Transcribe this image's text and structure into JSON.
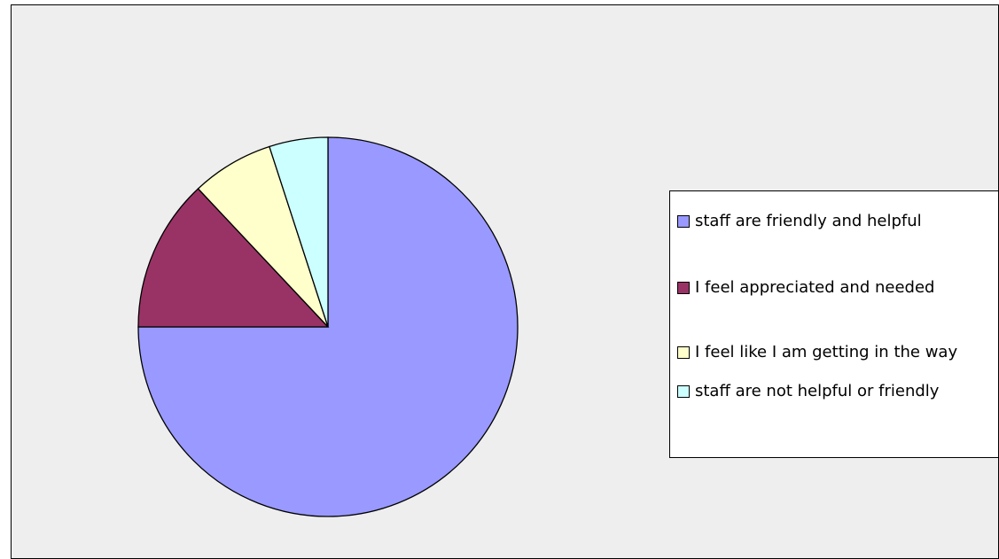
{
  "chart_data": {
    "type": "pie",
    "categories": [
      "staff are friendly and helpful",
      "I feel appreciated and needed",
      "I feel like I am getting in the way",
      "staff are not helpful or friendly"
    ],
    "values": [
      75,
      13,
      7,
      5
    ],
    "colors": [
      "#9999ff",
      "#993366",
      "#ffffcc",
      "#ccffff"
    ],
    "legend": "right"
  }
}
